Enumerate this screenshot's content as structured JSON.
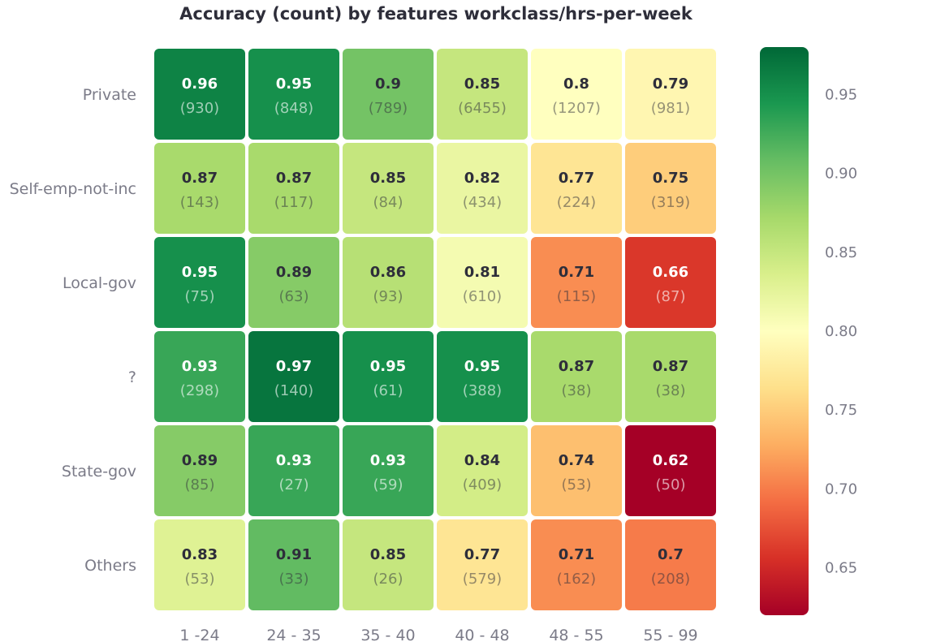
{
  "chart_data": {
    "type": "heatmap",
    "title": "Accuracy (count) by features workclass/hrs-per-week",
    "xlabel": "",
    "ylabel": "",
    "x_categories": [
      "1 -24",
      "24 - 35",
      "35 - 40",
      "40 - 48",
      "48 - 55",
      "55 - 99"
    ],
    "y_categories": [
      "Private",
      "Self-emp-not-inc",
      "Local-gov",
      "?",
      "State-gov",
      "Others"
    ],
    "values": [
      [
        0.96,
        0.95,
        0.9,
        0.85,
        0.8,
        0.79
      ],
      [
        0.87,
        0.87,
        0.85,
        0.82,
        0.77,
        0.75
      ],
      [
        0.95,
        0.89,
        0.86,
        0.81,
        0.71,
        0.66
      ],
      [
        0.93,
        0.97,
        0.95,
        0.95,
        0.87,
        0.87
      ],
      [
        0.89,
        0.93,
        0.93,
        0.84,
        0.74,
        0.62
      ],
      [
        0.83,
        0.91,
        0.85,
        0.77,
        0.71,
        0.7
      ]
    ],
    "counts": [
      [
        "(930)",
        "(848)",
        "(789)",
        "(6455)",
        "(1207)",
        "(981)"
      ],
      [
        "(143)",
        "(117)",
        "(84)",
        "(434)",
        "(224)",
        "(319)"
      ],
      [
        "(75)",
        "(63)",
        "(93)",
        "(610)",
        "(115)",
        "(87)"
      ],
      [
        "(298)",
        "(140)",
        "(61)",
        "(388)",
        "(38)",
        "(38)"
      ],
      [
        "(85)",
        "(27)",
        "(59)",
        "(409)",
        "(53)",
        "(50)"
      ],
      [
        "(53)",
        "(33)",
        "(26)",
        "(579)",
        "(162)",
        "(208)"
      ]
    ],
    "colorbar": {
      "range": [
        0.62,
        0.98
      ],
      "ticks": [
        0.95,
        0.9,
        0.85,
        0.8,
        0.75,
        0.7,
        0.65
      ],
      "tick_labels": [
        "0.95",
        "0.90",
        "0.85",
        "0.80",
        "0.75",
        "0.70",
        "0.65"
      ]
    },
    "colorscale": [
      "#a50026",
      "#d73027",
      "#f46d43",
      "#fdae61",
      "#fee08b",
      "#ffffbf",
      "#d9ef8b",
      "#a6d96a",
      "#66bd63",
      "#1a9850",
      "#006837"
    ]
  }
}
